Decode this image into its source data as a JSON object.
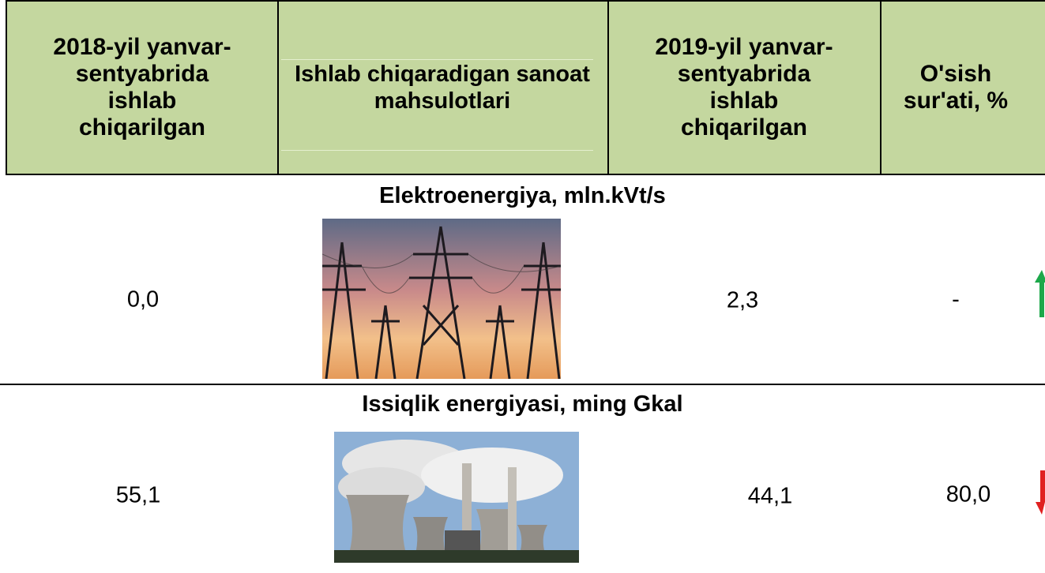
{
  "header": {
    "columns": [
      "2018-yil yanvar-sentyabrida ishlab chiqarilgan",
      "Ishlab chiqaradigan sanoat mahsulotlari",
      "2019-yil yanvar-sentyabrida ishlab chiqarilgan",
      "O'sish sur'ati, %"
    ]
  },
  "rows": [
    {
      "title": "Elektroenergiya, mln.kVt/s",
      "value_2018": "0,0",
      "value_2019": "2,3",
      "growth": "-"
    },
    {
      "title": "Issiqlik energiyasi, ming Gkal",
      "value_2018": "55,1",
      "value_2019": "44,1",
      "growth": "80,0"
    }
  ]
}
